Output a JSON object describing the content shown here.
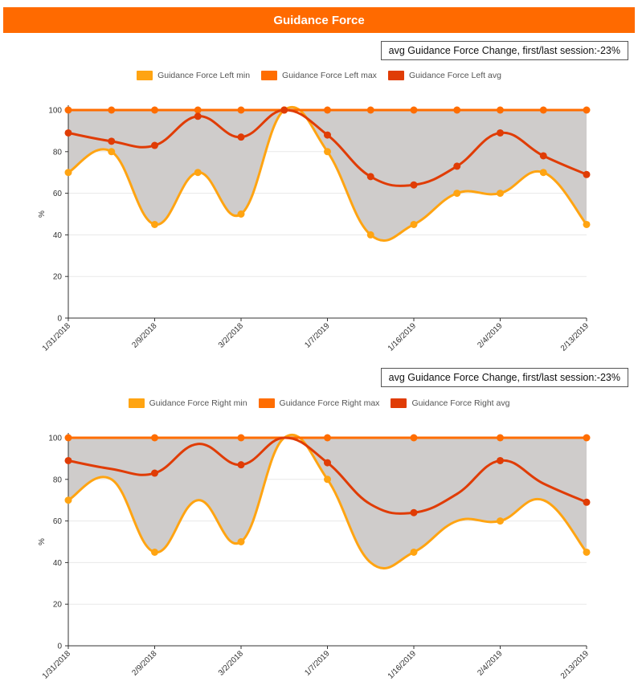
{
  "header": {
    "title": "Guidance Force"
  },
  "colors": {
    "header": "#ff6a00",
    "min": "#ffa412",
    "max": "#ff6d00",
    "avg": "#e03c05",
    "band": "#cfcccb"
  },
  "chart_data": [
    {
      "type": "area",
      "change_label": "avg Guidance Force Change, first/last session:-23%",
      "ylabel": "%",
      "ylim": [
        0,
        100
      ],
      "yticks": [
        0,
        20,
        40,
        60,
        80,
        100
      ],
      "grid": true,
      "legend_position": "top",
      "x": [
        "1/31/2018",
        "",
        "2/9/2018",
        "",
        "3/2/2018",
        "",
        "1/7/2019",
        "",
        "1/16/2019",
        "",
        "2/4/2019",
        "",
        "2/13/2019"
      ],
      "xtick_labels": [
        "1/31/2018",
        "2/9/2018",
        "3/2/2018",
        "1/7/2019",
        "1/16/2019",
        "2/4/2019",
        "2/13/2019"
      ],
      "series": [
        {
          "name": "Guidance Force Left min",
          "values": [
            70,
            80,
            45,
            70,
            50,
            100,
            80,
            40,
            45,
            60,
            60,
            70,
            45
          ]
        },
        {
          "name": "Guidance Force Left max",
          "values": [
            100,
            100,
            100,
            100,
            100,
            100,
            100,
            100,
            100,
            100,
            100,
            100,
            100
          ]
        },
        {
          "name": "Guidance Force Left avg",
          "values": [
            89,
            85,
            83,
            97,
            87,
            100,
            88,
            68,
            64,
            73,
            89,
            78,
            69
          ]
        }
      ]
    },
    {
      "type": "area",
      "change_label": "avg Guidance Force Change, first/last session:-23%",
      "ylabel": "%",
      "ylim": [
        0,
        100
      ],
      "yticks": [
        0,
        20,
        40,
        60,
        80,
        100
      ],
      "grid": true,
      "legend_position": "top",
      "x": [
        "1/31/2018",
        "",
        "2/9/2018",
        "",
        "3/2/2018",
        "",
        "1/7/2019",
        "",
        "1/16/2019",
        "",
        "2/4/2019",
        "",
        "2/13/2019"
      ],
      "xtick_labels": [
        "1/31/2018",
        "2/9/2018",
        "3/2/2018",
        "1/7/2019",
        "1/16/2019",
        "2/4/2019",
        "2/13/2019"
      ],
      "series": [
        {
          "name": "Guidance Force Right min",
          "values": [
            70,
            80,
            45,
            70,
            50,
            100,
            80,
            40,
            45,
            60,
            60,
            70,
            45
          ]
        },
        {
          "name": "Guidance Force Right max",
          "values": [
            100,
            100,
            100,
            100,
            100,
            100,
            100,
            100,
            100,
            100,
            100,
            100,
            100
          ]
        },
        {
          "name": "Guidance Force Right avg",
          "values": [
            89,
            85,
            83,
            97,
            87,
            100,
            88,
            68,
            64,
            73,
            89,
            78,
            69
          ]
        }
      ]
    }
  ]
}
